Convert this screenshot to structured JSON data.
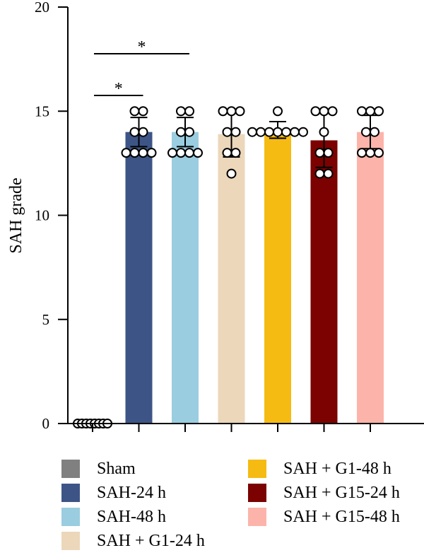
{
  "chart_data": {
    "type": "bar",
    "ylabel": "SAH grade",
    "ylim": [
      0,
      20
    ],
    "yticks": [
      "0",
      "5",
      "10",
      "15",
      "20"
    ],
    "categories": [
      "Sham",
      "SAH-24 h",
      "SAH-48 h",
      "SAH + G1-24 h",
      "SAH + G1-48 h",
      "SAH + G15-24 h",
      "SAH + G15-48 h"
    ],
    "values": [
      0,
      14.0,
      14.0,
      13.9,
      14.1,
      13.6,
      14.0
    ],
    "errors": [
      0,
      0.7,
      0.7,
      1.1,
      0.4,
      1.3,
      0.8
    ],
    "colors": [
      "#808080",
      "#3d5586",
      "#9acde0",
      "#ecd7bb",
      "#f5bb13",
      "#7b0200",
      "#fcb4aa"
    ],
    "points": [
      [
        0,
        0,
        0,
        0,
        0,
        0,
        0,
        0
      ],
      [
        15,
        15,
        14,
        14,
        13,
        13,
        13,
        13
      ],
      [
        15,
        15,
        14,
        14,
        13,
        13,
        13,
        13
      ],
      [
        15,
        15,
        15,
        14,
        14,
        13,
        13,
        12
      ],
      [
        15,
        14,
        14,
        14,
        14,
        14,
        14,
        14
      ],
      [
        15,
        15,
        15,
        14,
        13,
        13,
        12,
        12
      ],
      [
        15,
        15,
        15,
        14,
        14,
        13,
        13,
        13
      ]
    ],
    "significance": [
      {
        "from": 0,
        "to": 1,
        "label": "*"
      },
      {
        "from": 0,
        "to": 2,
        "label": "*"
      }
    ],
    "legend": [
      {
        "label": "Sham",
        "color": "#808080"
      },
      {
        "label": "SAH-24 h",
        "color": "#3d5586"
      },
      {
        "label": "SAH-48 h",
        "color": "#9acde0"
      },
      {
        "label": "SAH + G1-24 h",
        "color": "#ecd7bb"
      },
      {
        "label": "SAH + G1-48 h",
        "color": "#f5bb13"
      },
      {
        "label": "SAH + G15-24 h",
        "color": "#7b0200"
      },
      {
        "label": "SAH + G15-48 h",
        "color": "#fcb4aa"
      }
    ]
  }
}
